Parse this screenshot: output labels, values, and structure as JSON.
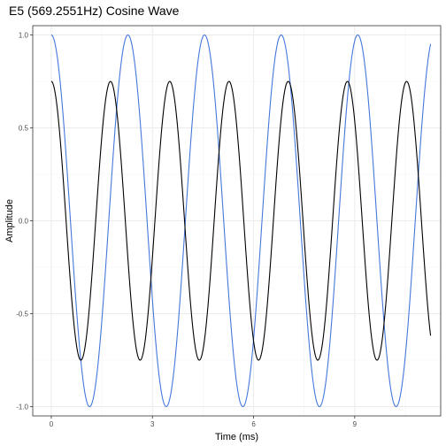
{
  "chart_data": {
    "type": "line",
    "title": "E5 (569.2551Hz) Cosine Wave",
    "xlabel": "Time (ms)",
    "ylabel": "Amplitude",
    "xlim": [
      -0.55,
      11.55
    ],
    "ylim": [
      -1.05,
      1.05
    ],
    "x_ticks": [
      0,
      3,
      6,
      9
    ],
    "x_tick_labels": [
      "0",
      "3",
      "6",
      "9"
    ],
    "y_ticks": [
      -1.0,
      -0.5,
      0.0,
      0.5,
      1.0
    ],
    "y_tick_labels": [
      "-1.0",
      "-0.5",
      "0.0",
      "0.5",
      "1.0"
    ],
    "grid": true,
    "x_range": [
      0,
      11.25
    ],
    "series": [
      {
        "label": "",
        "color": "#4477dd",
        "formula": "amplitude * cos(2*pi*frequency_hz*t_ms/1000 + phase)",
        "amplitude": 1.0,
        "frequency_hz": 440,
        "phase": 0
      },
      {
        "label": "",
        "color": "#000000",
        "formula": "amplitude * cos(2*pi*frequency_hz*t_ms/1000 + phase)",
        "amplitude": 0.75,
        "frequency_hz": 569.2551,
        "phase": 0
      }
    ]
  }
}
